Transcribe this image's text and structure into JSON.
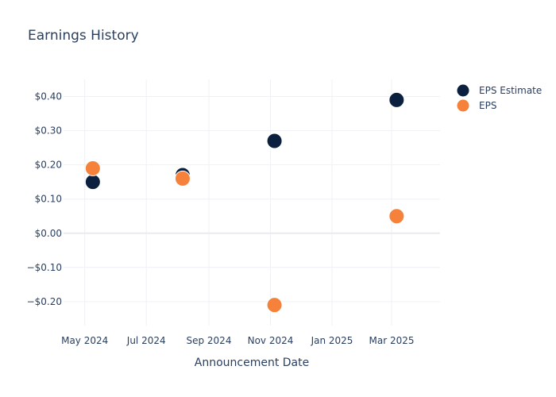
{
  "chart_data": {
    "type": "scatter",
    "title": "Earnings History",
    "xlabel": "Announcement Date",
    "ylabel": "",
    "x_axis_type": "date",
    "xlim": [
      "2024-04-10",
      "2025-04-18"
    ],
    "ylim": [
      -0.27,
      0.45
    ],
    "x_ticks": [
      {
        "date": "2024-05-01",
        "label": "May 2024"
      },
      {
        "date": "2024-07-01",
        "label": "Jul 2024"
      },
      {
        "date": "2024-09-01",
        "label": "Sep 2024"
      },
      {
        "date": "2024-11-01",
        "label": "Nov 2024"
      },
      {
        "date": "2025-01-01",
        "label": "Jan 2025"
      },
      {
        "date": "2025-03-01",
        "label": "Mar 2025"
      }
    ],
    "y_ticks": [
      {
        "value": 0.4,
        "label": "$0.40"
      },
      {
        "value": 0.3,
        "label": "$0.30"
      },
      {
        "value": 0.2,
        "label": "$0.20"
      },
      {
        "value": 0.1,
        "label": "$0.10"
      },
      {
        "value": 0.0,
        "label": "$0.00"
      },
      {
        "value": -0.1,
        "label": "−$0.10"
      },
      {
        "value": -0.2,
        "label": "−$0.20"
      }
    ],
    "grid": true,
    "legend_position": "top-right",
    "series": [
      {
        "name": "EPS Estimate",
        "color": "#0b1f3f",
        "points": [
          {
            "x": "2024-05-09",
            "y": 0.15
          },
          {
            "x": "2024-08-06",
            "y": 0.17
          },
          {
            "x": "2024-11-05",
            "y": 0.27
          },
          {
            "x": "2025-03-06",
            "y": 0.39
          }
        ]
      },
      {
        "name": "EPS",
        "color": "#f5813a",
        "points": [
          {
            "x": "2024-05-09",
            "y": 0.19
          },
          {
            "x": "2024-08-06",
            "y": 0.16
          },
          {
            "x": "2024-11-05",
            "y": -0.21
          },
          {
            "x": "2025-03-06",
            "y": 0.05
          }
        ]
      }
    ]
  }
}
